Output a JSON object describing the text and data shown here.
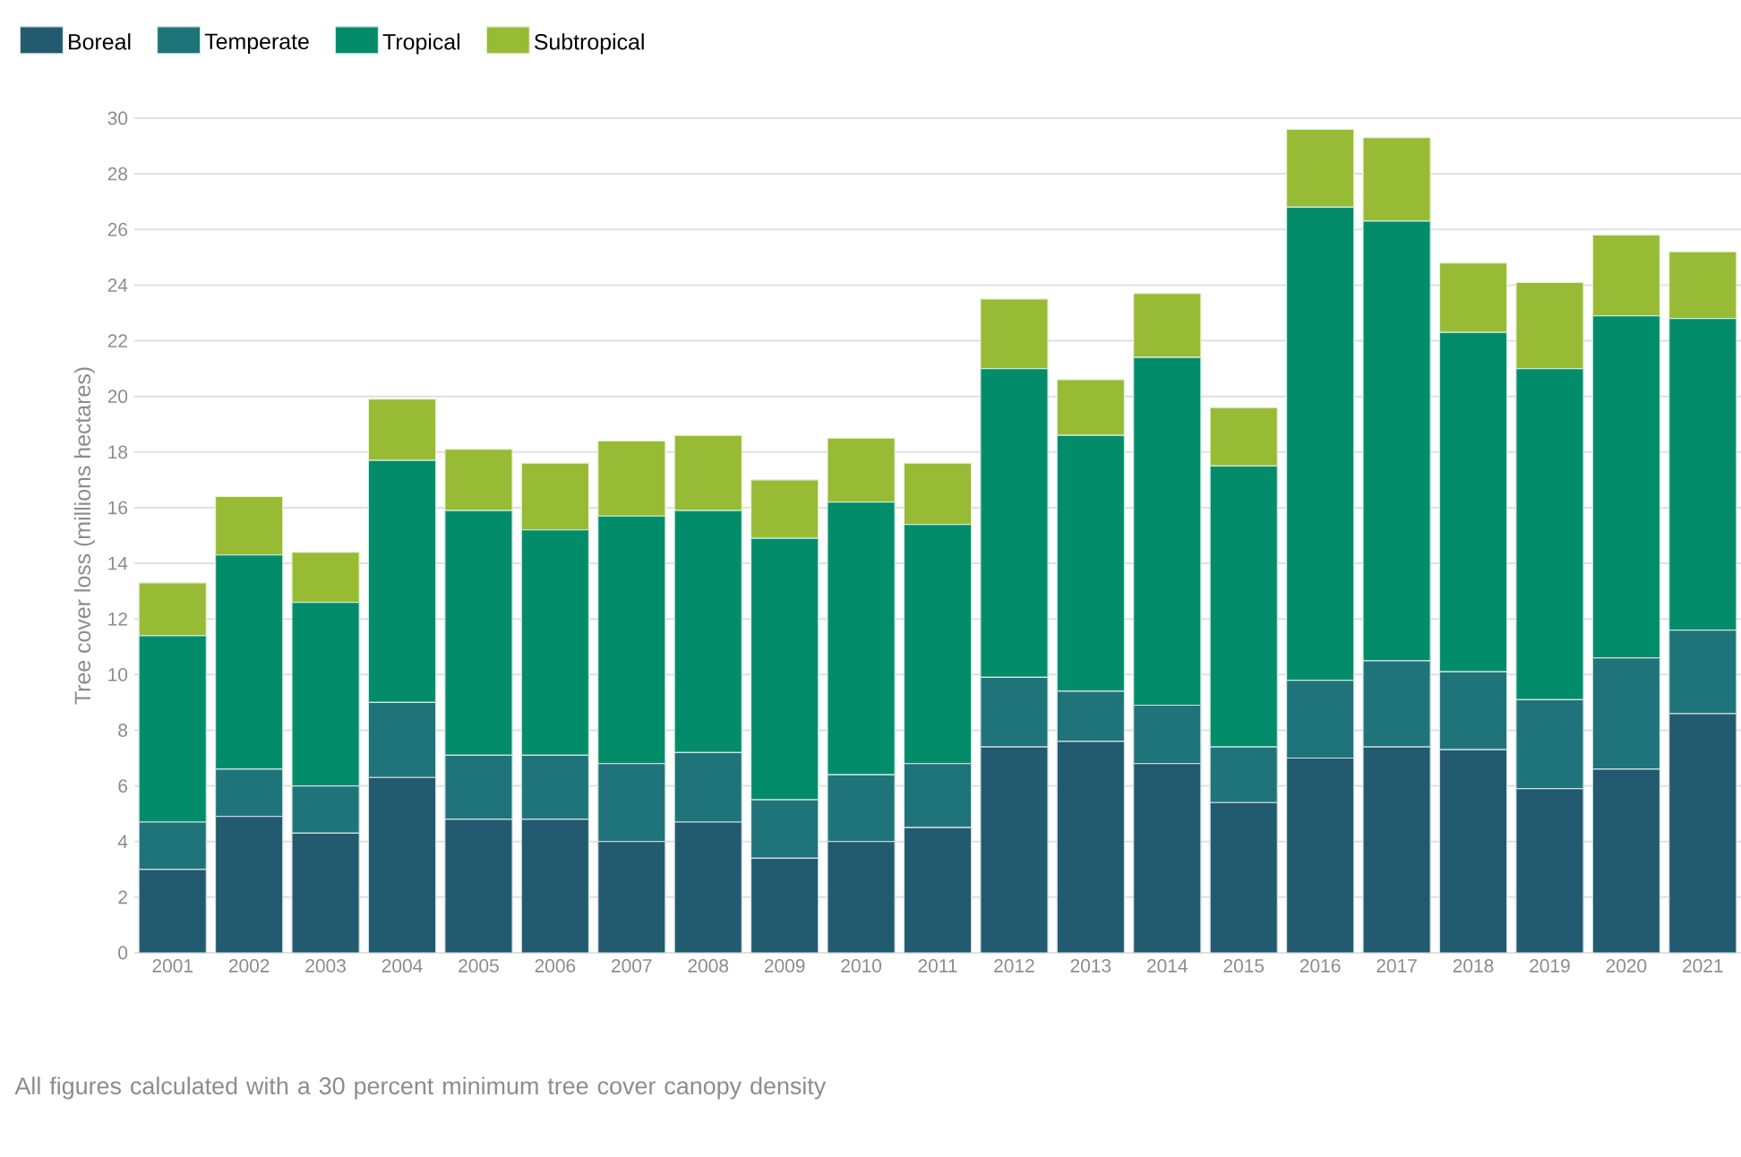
{
  "chart_data": {
    "type": "bar",
    "stacked": true,
    "categories": [
      "2001",
      "2002",
      "2003",
      "2004",
      "2005",
      "2006",
      "2007",
      "2008",
      "2009",
      "2010",
      "2011",
      "2012",
      "2013",
      "2014",
      "2015",
      "2016",
      "2017",
      "2018",
      "2019",
      "2020",
      "2021"
    ],
    "series": [
      {
        "name": "Boreal",
        "color": "#225a70",
        "values": [
          3.0,
          4.9,
          4.3,
          6.3,
          4.8,
          4.8,
          4.0,
          4.7,
          3.4,
          4.0,
          4.5,
          7.4,
          7.6,
          6.8,
          5.4,
          7.0,
          7.4,
          7.3,
          5.9,
          6.6,
          8.6
        ]
      },
      {
        "name": "Temperate",
        "color": "#1f747a",
        "values": [
          1.7,
          1.7,
          1.7,
          2.7,
          2.3,
          2.3,
          2.8,
          2.5,
          2.1,
          2.4,
          2.3,
          2.5,
          1.8,
          2.1,
          2.0,
          2.8,
          3.1,
          2.8,
          3.2,
          4.0,
          3.0
        ]
      },
      {
        "name": "Tropical",
        "color": "#038c6a",
        "values": [
          6.7,
          7.7,
          6.6,
          8.7,
          8.8,
          8.1,
          8.9,
          8.7,
          9.4,
          9.8,
          8.6,
          11.1,
          9.2,
          12.5,
          10.1,
          17.0,
          15.8,
          12.2,
          11.9,
          12.3,
          11.2
        ]
      },
      {
        "name": "Subtropical",
        "color": "#97bb34",
        "values": [
          1.9,
          2.1,
          1.8,
          2.2,
          2.2,
          2.4,
          2.7,
          2.7,
          2.1,
          2.3,
          2.2,
          2.5,
          2.0,
          2.3,
          2.1,
          2.8,
          3.0,
          2.5,
          3.1,
          2.9,
          2.4
        ]
      }
    ],
    "ylabel": "Tree cover loss (millions hectares)",
    "ylim": [
      0,
      30
    ],
    "yticks": [
      0,
      2,
      4,
      6,
      8,
      10,
      12,
      14,
      16,
      18,
      20,
      22,
      24,
      26,
      28,
      30
    ],
    "grid": "y",
    "legend": "top left",
    "annotations": [
      "All figures calculated with a 30 percent minimum tree cover canopy density"
    ]
  }
}
